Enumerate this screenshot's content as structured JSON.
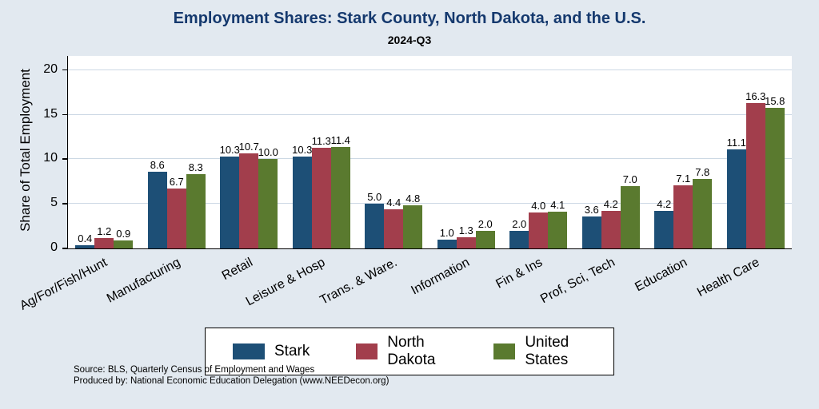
{
  "title": "Employment Shares: Stark County, North Dakota, and the U.S.",
  "subtitle": "2024-Q3",
  "ylabel": "Share of Total Employment",
  "source_line1": "Source: BLS, Quarterly Census of Employment and Wages",
  "source_line2": "Produced by: National Economic Education Delegation (www.NEEDecon.org)",
  "colors": {
    "background": "#e2e9f0",
    "plot_background": "#ffffff",
    "title_text": "#15396e",
    "gridline": "#ccd8e4",
    "stark": "#1d4f76",
    "north_dakota": "#a23e4c",
    "united_states": "#5a7a2f"
  },
  "chart_data": {
    "type": "bar",
    "title": "Employment Shares: Stark County, North Dakota, and the U.S.",
    "subtitle": "2024-Q3",
    "ylabel": "Share of Total Employment",
    "xlabel": "",
    "categories": [
      "Ag/For/Fish/Hunt",
      "Manufacturing",
      "Retail",
      "Leisure & Hosp",
      "Trans. & Ware.",
      "Information",
      "Fin & Ins",
      "Prof, Sci, Tech",
      "Education",
      "Health Care"
    ],
    "series": [
      {
        "name": "Stark",
        "color_key": "stark",
        "values": [
          0.4,
          8.6,
          10.3,
          10.3,
          5.0,
          1.0,
          2.0,
          3.6,
          4.2,
          11.1
        ]
      },
      {
        "name": "North Dakota",
        "color_key": "north_dakota",
        "values": [
          1.2,
          6.7,
          10.7,
          11.3,
          4.4,
          1.3,
          4.0,
          4.2,
          7.1,
          16.3
        ]
      },
      {
        "name": "United States",
        "color_key": "united_states",
        "values": [
          0.9,
          8.3,
          10.0,
          11.4,
          4.8,
          2.0,
          4.1,
          7.0,
          7.8,
          15.8
        ]
      }
    ],
    "yticks": [
      0,
      5,
      10,
      15,
      20
    ],
    "ylim": [
      0,
      21.7
    ],
    "grid": true,
    "legend_position": "bottom-center",
    "value_labels": true
  }
}
